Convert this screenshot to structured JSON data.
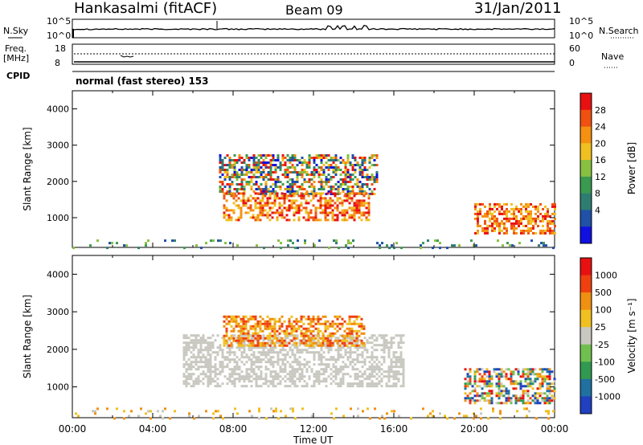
{
  "header": {
    "station": "Hankasalmi (fitACF)",
    "beam": "Beam 09",
    "date": "31/Jan/2011"
  },
  "status_panels": {
    "nsky_label": "N.Sky",
    "nsearch_label": "N.Search",
    "freq_label_1": "Freq.",
    "freq_label_2": "[MHz]",
    "nave_label": "Nave",
    "cpid_label": "CPID",
    "noise_ticks_left": [
      "10^5",
      "10^0"
    ],
    "noise_ticks_right": [
      "10^5",
      "10^0"
    ],
    "freq_ticks": [
      "18",
      "8"
    ],
    "nave_ticks": [
      "60",
      "0"
    ],
    "cpid_text": "normal (fast stereo) 153"
  },
  "chart_data": [
    {
      "type": "heatmap",
      "name": "power",
      "ylabel": "Slant Range [km]",
      "ylim": [
        180,
        4500
      ],
      "y_ticks": [
        "1000",
        "2000",
        "3000",
        "4000"
      ],
      "colorbar_label": "Power [dB]",
      "colorbar_ticks": [
        "28",
        "24",
        "20",
        "16",
        "12",
        "8",
        "4"
      ],
      "colors": [
        "#1010e0",
        "#2050a8",
        "#2e7d70",
        "#3a9a50",
        "#88c040",
        "#f0c020",
        "#f59010",
        "#f05010",
        "#e81010"
      ],
      "regions": [
        {
          "x": [
            7.3,
            15.2
          ],
          "y": [
            1650,
            2750
          ],
          "level": "mid"
        },
        {
          "x": [
            7.5,
            14.8
          ],
          "y": [
            950,
            1700
          ],
          "level": "high"
        },
        {
          "x": [
            20.0,
            24.0
          ],
          "y": [
            600,
            1400
          ],
          "level": "high"
        },
        {
          "x": [
            0.0,
            24.0
          ],
          "y": [
            180,
            400
          ],
          "level": "low"
        }
      ]
    },
    {
      "type": "heatmap",
      "name": "velocity",
      "xlabel": "Time UT",
      "ylabel": "Slant Range [km]",
      "ylim": [
        180,
        4500
      ],
      "y_ticks": [
        "1000",
        "2000",
        "3000",
        "4000"
      ],
      "x_ticks": [
        "00:00",
        "04:00",
        "08:00",
        "12:00",
        "16:00",
        "20:00",
        "00:00"
      ],
      "colorbar_label": "Velocity [m s⁻¹]",
      "colorbar_ticks": [
        "1000",
        "500",
        "100",
        "25",
        "-25",
        "-100",
        "-500",
        "-1000"
      ],
      "colors": [
        "#2040c0",
        "#2070a0",
        "#309a50",
        "#70c050",
        "#c8c8c0",
        "#f0c020",
        "#f09010",
        "#f04010",
        "#e81010"
      ],
      "regions": [
        {
          "x": [
            5.5,
            16.5
          ],
          "y": [
            1000,
            2400
          ],
          "level": "grey"
        },
        {
          "x": [
            7.5,
            14.5
          ],
          "y": [
            2100,
            2900
          ],
          "level": "orange"
        },
        {
          "x": [
            19.5,
            24.0
          ],
          "y": [
            550,
            1500
          ],
          "level": "mixed"
        },
        {
          "x": [
            0.0,
            24.0
          ],
          "y": [
            180,
            450
          ],
          "level": "low"
        }
      ]
    }
  ]
}
